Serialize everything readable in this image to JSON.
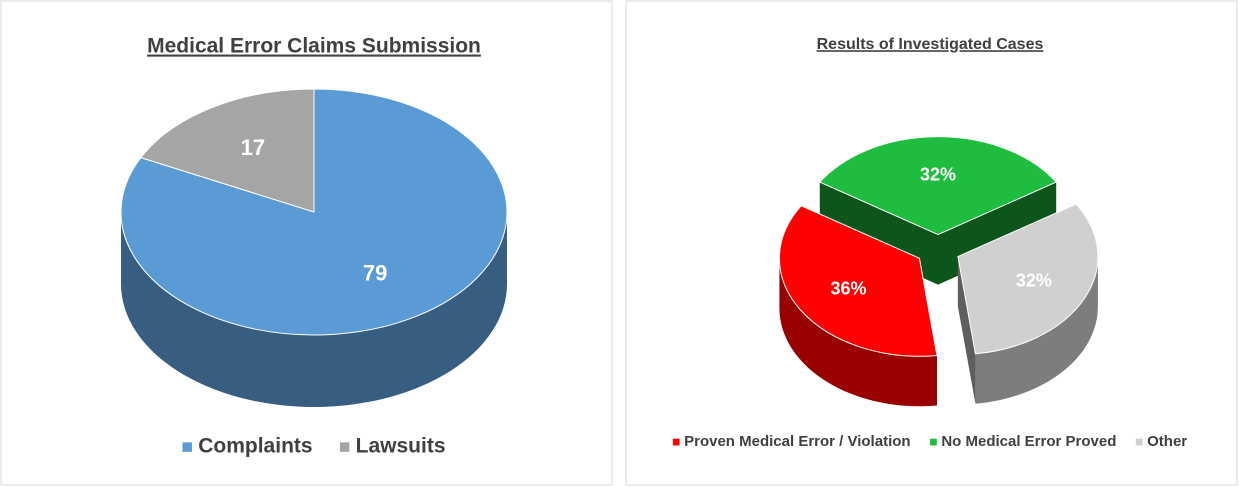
{
  "chart_data": [
    {
      "type": "pie",
      "title": "Medical Error Claims Submission",
      "categories": [
        "Complaints",
        "Lawsuits"
      ],
      "values": [
        79,
        17
      ],
      "colors": [
        "#5b9bd5",
        "#a5a5a5"
      ],
      "legend": "bottom"
    },
    {
      "type": "pie",
      "title": "Results of Investigated Cases",
      "categories": [
        "Proven Medical Error / Violation",
        "No Medical Error Proved",
        "Other"
      ],
      "values": [
        36,
        32,
        32
      ],
      "value_labels": [
        "36%",
        "32%",
        "32%"
      ],
      "colors": [
        "#ff0000",
        "#1fbd3f",
        "#d0d0d0"
      ],
      "legend": "bottom"
    }
  ]
}
